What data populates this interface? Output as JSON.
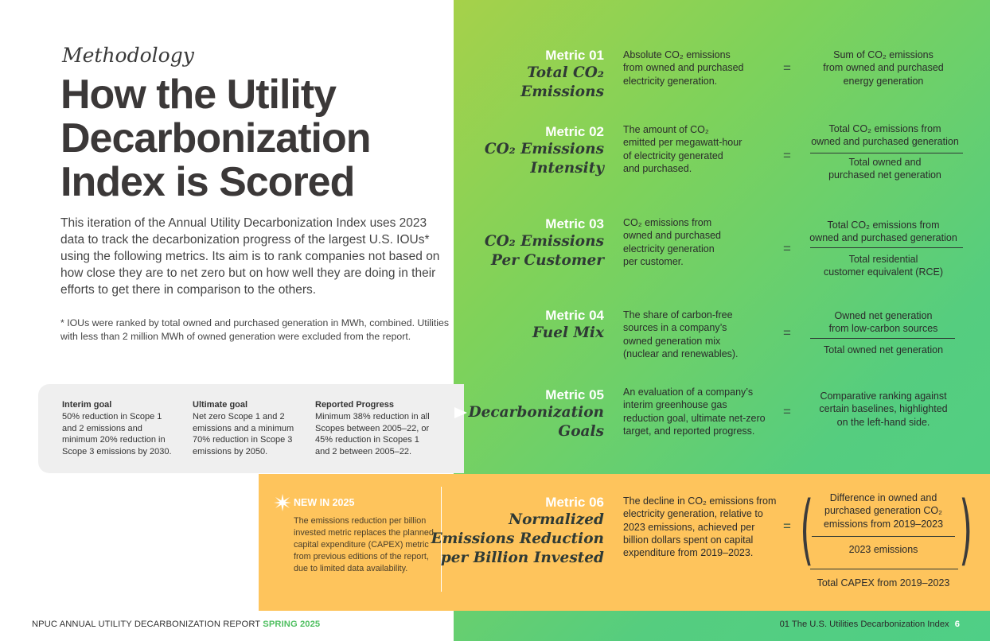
{
  "section_label": "Methodology",
  "headline": [
    "How the Utility",
    "Decarbonization",
    "Index is Scored"
  ],
  "intro": "This iteration of the Annual Utility Decarbonization Index uses 2023 data to track the decarbonization progress of the largest U.S. IOUs* using the following metrics. Its aim is to rank companies not based on how close they are to net zero but on how well they are doing in their efforts to get there in comparison to the others.",
  "footnote": "* IOUs were ranked by total owned and purchased generation in MWh, combined. Utilities with less than 2 million MWh of owned generation were excluded from the report.",
  "goals": [
    {
      "title": "Interim goal",
      "text": "50% reduction in Scope 1 and 2 emissions and minimum 20% reduction in Scope 3 emissions by 2030."
    },
    {
      "title": "Ultimate goal",
      "text": "Net zero Scope 1 and 2 emissions and a minimum 70% reduction in Scope 3 emissions by 2050."
    },
    {
      "title": "Reported Progress",
      "text": "Minimum 38% reduction in all Scopes between 2005–22, or 45% reduction in Scopes 1 and 2 between 2005–22."
    }
  ],
  "equals_sign": "=",
  "metrics": [
    {
      "num": "Metric 01",
      "name": [
        "Total CO₂",
        "Emissions"
      ],
      "desc": [
        "Absolute CO₂ emissions",
        "from owned and purchased",
        "electricity generation."
      ],
      "formula_top": [
        "Sum of CO₂ emissions",
        "from owned and purchased",
        "energy generation"
      ]
    },
    {
      "num": "Metric 02",
      "name": [
        "CO₂ Emissions",
        "Intensity"
      ],
      "desc": [
        "The amount of CO₂",
        "emitted per megawatt-hour",
        "of electricity generated",
        "and purchased."
      ],
      "formula_top": [
        "Total CO₂ emissions from",
        "owned and purchased generation"
      ],
      "formula_bottom": [
        "Total owned and",
        "purchased net generation"
      ]
    },
    {
      "num": "Metric 03",
      "name": [
        "CO₂ Emissions",
        "Per Customer"
      ],
      "desc": [
        "CO₂ emissions from",
        "owned and purchased",
        "electricity generation",
        "per customer."
      ],
      "formula_top": [
        "Total CO₂ emissions from",
        "owned and purchased generation"
      ],
      "formula_bottom": [
        "Total residential",
        "customer equivalent (RCE)"
      ]
    },
    {
      "num": "Metric 04",
      "name": [
        "Fuel Mix"
      ],
      "desc": [
        "The share of carbon-free",
        "sources in a company’s",
        "owned generation mix",
        "(nuclear and renewables)."
      ],
      "formula_top": [
        "Owned net generation",
        "from low-carbon sources"
      ],
      "formula_bottom": [
        "Total owned net generation"
      ]
    },
    {
      "num": "Metric 05",
      "name": [
        "Decarbonization",
        "Goals"
      ],
      "desc": [
        "An evaluation of a company’s",
        "interim greenhouse gas",
        "reduction goal, ultimate net-zero",
        "target, and reported progress."
      ],
      "formula_top": [
        "Comparative ranking against",
        "certain baselines, highlighted",
        "on the left-hand side."
      ]
    },
    {
      "num": "Metric 06",
      "name": [
        "Normalized",
        "Emissions Reduction",
        "per Billion Invested"
      ],
      "desc": [
        "The decline in CO₂ emissions from",
        "electricity generation, relative to",
        "2023 emissions, achieved per",
        "billion dollars spent on capital",
        "expenditure from 2019–2023."
      ],
      "formula_top": [
        "Difference in owned and",
        "purchased generation CO₂",
        "emissions from 2019–2023"
      ],
      "formula_mid": [
        "2023 emissions"
      ],
      "formula_bottom": [
        "Total CAPEX from 2019–2023"
      ]
    }
  ],
  "new_in": {
    "label": "NEW IN 2025",
    "text": "The emissions reduction per billion invested metric replaces the planned capital expenditure (CAPEX) metric from previous editions of the report, due to limited data availability."
  },
  "footer": {
    "left": "NPUC ANNUAL UTILITY DECARBONIZATION REPORT",
    "left_accent": "SPRING 2025",
    "right": "01 The U.S. Utilities Decarbonization Index",
    "page": "6"
  }
}
